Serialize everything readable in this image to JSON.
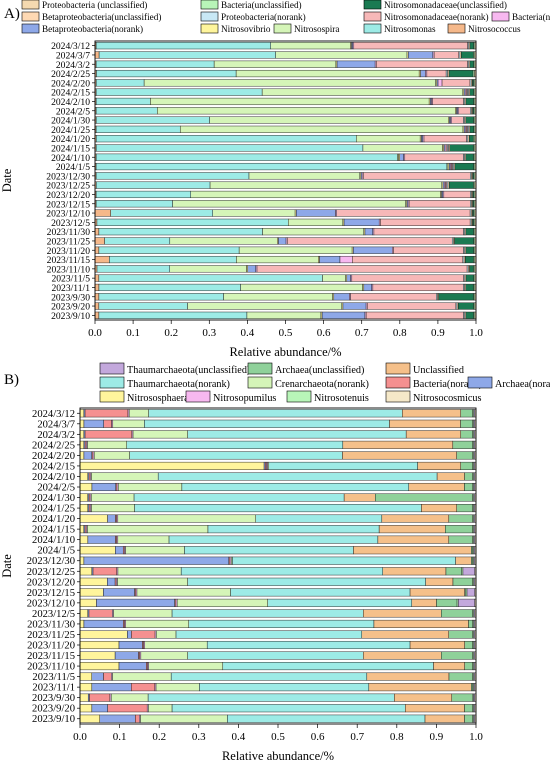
{
  "chart_data": [
    {
      "panel_label": "A)",
      "type": "bar",
      "orientation": "horizontal",
      "stacked": true,
      "xlabel": "Relative abundance/%",
      "ylabel": "Date",
      "xlim": [
        0,
        1
      ],
      "xticks": [
        "0.0",
        "0.1",
        "0.2",
        "0.3",
        "0.4",
        "0.5",
        "0.6",
        "0.7",
        "0.8",
        "0.9",
        "1.0"
      ],
      "legend_position": "top",
      "categories": [
        "2024/3/12",
        "2024/3/7",
        "2024/3/2",
        "2024/2/25",
        "2024/2/20",
        "2024/2/15",
        "2024/2/10",
        "2024/2/5",
        "2024/1/30",
        "2024/1/25",
        "2024/1/20",
        "2024/1/15",
        "2024/1/10",
        "2024/1/5",
        "2023/12/30",
        "2023/12/25",
        "2023/12/20",
        "2023/12/15",
        "2023/12/10",
        "2023/12/5",
        "2023/11/30",
        "2023/11/25",
        "2023/11/20",
        "2023/11/15",
        "2023/11/10",
        "2023/11/5",
        "2023/11/1",
        "2023/9/30",
        "2023/9/20",
        "2023/9/10"
      ],
      "series": [
        {
          "name": "Nitrosococcus",
          "color": "#F5B88A",
          "values": [
            0.003,
            0.01,
            0.003,
            0.003,
            0.003,
            0.003,
            0.003,
            0.003,
            0.003,
            0.003,
            0.003,
            0.003,
            0.003,
            0.003,
            0.003,
            0.003,
            0.003,
            0.003,
            0.04,
            0.005,
            0.01,
            0.025,
            0.01,
            0.035,
            0.005,
            0.01,
            0.01,
            0.01,
            0.01,
            0.01
          ]
        },
        {
          "name": "Nitrosomonas",
          "color": "#9DEBE6",
          "values": [
            0.46,
            0.43,
            0.31,
            0.29,
            0.12,
            0.43,
            0.14,
            0.16,
            0.29,
            0.22,
            0.61,
            0.67,
            0.77,
            0.93,
            0.4,
            0.28,
            0.25,
            0.2,
            0.26,
            0.49,
            0.42,
            0.17,
            0.36,
            0.31,
            0.18,
            0.58,
            0.36,
            0.32,
            0.23,
            0.38
          ]
        },
        {
          "name": "Nitrosospira",
          "color": "#D5F5B8",
          "values": [
            0.21,
            0.32,
            0.32,
            0.38,
            0.73,
            0.52,
            0.72,
            0.78,
            0.61,
            0.74,
            0.15,
            0.2,
            0.003,
            0.003,
            0.29,
            0.57,
            0.66,
            0.61,
            0.21,
            0.14,
            0.26,
            0.28,
            0.29,
            0.2,
            0.19,
            0.06,
            0.31,
            0.28,
            0.4,
            0.19
          ]
        },
        {
          "name": "Nitrosovibrio",
          "color": "#FFF59C",
          "values": [
            0.003,
            0.003,
            0.003,
            0.003,
            0.003,
            0.003,
            0.003,
            0.003,
            0.003,
            0.003,
            0.003,
            0.003,
            0.003,
            0.003,
            0.003,
            0.003,
            0.003,
            0.003,
            0.003,
            0.003,
            0.003,
            0.003,
            0.003,
            0.003,
            0.003,
            0.003,
            0.003,
            0.003,
            0.003,
            0.003
          ]
        },
        {
          "name": "Betaproteobacteria(norank)",
          "color": "#8EA8E8",
          "values": [
            0.003,
            0.06,
            0.1,
            0.01,
            0.003,
            0.003,
            0.003,
            0.003,
            0.003,
            0.003,
            0.003,
            0.003,
            0.01,
            0.003,
            0.003,
            0.003,
            0.003,
            0.003,
            0.1,
            0.09,
            0.02,
            0.02,
            0.1,
            0.05,
            0.02,
            0.01,
            0.02,
            0.04,
            0.06,
            0.11
          ]
        },
        {
          "name": "Bacteria(norank)",
          "color": "#F7B8F0",
          "values": [
            0.003,
            0.003,
            0.003,
            0.003,
            0.01,
            0.003,
            0.003,
            0.003,
            0.003,
            0.003,
            0.003,
            0.003,
            0.003,
            0.003,
            0.003,
            0.003,
            0.003,
            0.003,
            0.003,
            0.003,
            0.003,
            0.003,
            0.003,
            0.03,
            0.003,
            0.003,
            0.003,
            0.003,
            0.003,
            0.003
          ]
        },
        {
          "name": "Nitrosomonadaceae(norank)",
          "color": "#F7B8B8",
          "values": [
            0.3,
            0.06,
            0.24,
            0.04,
            0.07,
            0.003,
            0.08,
            0.03,
            0.03,
            0.003,
            0.1,
            0.003,
            0.15,
            0.003,
            0.28,
            0.003,
            0.07,
            0.16,
            0.34,
            0.23,
            0.23,
            0.43,
            0.18,
            0.27,
            0.52,
            0.29,
            0.23,
            0.22,
            0.23,
            0.25
          ]
        },
        {
          "name": "Proteobacteria(norank)",
          "color": "#C8E8F5",
          "values": [
            0.003,
            0.003,
            0.003,
            0.003,
            0.003,
            0.003,
            0.003,
            0.003,
            0.003,
            0.003,
            0.003,
            0.003,
            0.003,
            0.003,
            0.003,
            0.003,
            0.003,
            0.003,
            0.003,
            0.003,
            0.003,
            0.003,
            0.003,
            0.003,
            0.003,
            0.003,
            0.003,
            0.003,
            0.003,
            0.003
          ]
        },
        {
          "name": "Betaproteobacteria(unclassified)",
          "color": "#FFD9B3",
          "values": [
            0.003,
            0.003,
            0.003,
            0.003,
            0.003,
            0.003,
            0.003,
            0.003,
            0.003,
            0.003,
            0.003,
            0.003,
            0.003,
            0.003,
            0.003,
            0.003,
            0.003,
            0.003,
            0.003,
            0.003,
            0.003,
            0.003,
            0.003,
            0.003,
            0.003,
            0.003,
            0.003,
            0.003,
            0.003,
            0.003
          ]
        },
        {
          "name": "Nitrosomonadaceae(unclassified)",
          "color": "#1A7A52",
          "values": [
            0.01,
            0.03,
            0.01,
            0.05,
            0.003,
            0.01,
            0.02,
            0.003,
            0.02,
            0.01,
            0.01,
            0.06,
            0.02,
            0.05,
            0.003,
            0.06,
            0.003,
            0.003,
            0.003,
            0.003,
            0.02,
            0.05,
            0.02,
            0.02,
            0.01,
            0.02,
            0.02,
            0.09,
            0.04,
            0.02
          ]
        },
        {
          "name": "Bacteria(unclassified)",
          "color": "#B8F5B8",
          "values": [
            0.003,
            0.003,
            0.003,
            0.003,
            0.003,
            0.003,
            0.003,
            0.003,
            0.003,
            0.003,
            0.003,
            0.003,
            0.003,
            0.003,
            0.003,
            0.003,
            0.003,
            0.003,
            0.003,
            0.003,
            0.003,
            0.003,
            0.003,
            0.003,
            0.003,
            0.003,
            0.003,
            0.003,
            0.003,
            0.003
          ]
        },
        {
          "name": "Proteobacteria (unclassified)",
          "color": "#F5D9B0",
          "values": [
            0.003,
            0.003,
            0.003,
            0.003,
            0.003,
            0.003,
            0.003,
            0.003,
            0.003,
            0.003,
            0.003,
            0.003,
            0.003,
            0.003,
            0.003,
            0.003,
            0.003,
            0.003,
            0.003,
            0.003,
            0.003,
            0.003,
            0.003,
            0.003,
            0.003,
            0.003,
            0.003,
            0.003,
            0.003,
            0.003
          ]
        }
      ]
    },
    {
      "panel_label": "B)",
      "type": "bar",
      "orientation": "horizontal",
      "stacked": true,
      "xlabel": "Relative abundance/%",
      "ylabel": "Date",
      "xlim": [
        0,
        1
      ],
      "xticks": [
        "0.0",
        "0.1",
        "0.2",
        "0.3",
        "0.4",
        "0.5",
        "0.6",
        "0.7",
        "0.8",
        "0.9",
        "1.0"
      ],
      "legend_position": "top",
      "categories": [
        "2024/3/12",
        "2024/3/7",
        "2024/3/2",
        "2024/2/25",
        "2024/2/20",
        "2024/2/15",
        "2024/2/10",
        "2024/2/5",
        "2024/1/30",
        "2024/1/25",
        "2024/1/20",
        "2024/1/15",
        "2024/1/10",
        "2024/1/5",
        "2023/12/30",
        "2023/12/25",
        "2023/12/20",
        "2023/12/15",
        "2023/12/10",
        "2023/12/5",
        "2023/11/30",
        "2023/11/25",
        "2023/11/20",
        "2023/11/15",
        "2023/11/10",
        "2023/11/5",
        "2023/11/1",
        "2023/9/30",
        "2023/9/20",
        "2023/9/10"
      ],
      "series": [
        {
          "name": "Nitrososphaera",
          "color": "#FFF59C",
          "values": [
            0.01,
            0.01,
            0.01,
            0.01,
            0.01,
            0.47,
            0.02,
            0.03,
            0.02,
            0.02,
            0.07,
            0.01,
            0.02,
            0.09,
            0.01,
            0.03,
            0.07,
            0.06,
            0.04,
            0.02,
            0.01,
            0.12,
            0.1,
            0.09,
            0.1,
            0.03,
            0.03,
            0.02,
            0.03,
            0.05
          ]
        },
        {
          "name": "Archaea(norank)",
          "color": "#8EA8E8",
          "values": [
            0.003,
            0.05,
            0.003,
            0.003,
            0.02,
            0.003,
            0.003,
            0.06,
            0.003,
            0.003,
            0.02,
            0.003,
            0.07,
            0.02,
            0.37,
            0.003,
            0.02,
            0.08,
            0.19,
            0.003,
            0.1,
            0.01,
            0.06,
            0.06,
            0.07,
            0.03,
            0.1,
            0.003,
            0.04,
            0.09
          ]
        },
        {
          "name": "Bacteria(norank)",
          "color": "#F59090",
          "values": [
            0.11,
            0.02,
            0.12,
            0.003,
            0.003,
            0.003,
            0.003,
            0.003,
            0.003,
            0.003,
            0.003,
            0.003,
            0.003,
            0.003,
            0.003,
            0.06,
            0.003,
            0.003,
            0.003,
            0.06,
            0.003,
            0.06,
            0.003,
            0.003,
            0.003,
            0.02,
            0.06,
            0.05,
            0.1,
            0.01
          ]
        },
        {
          "name": "Nitrosopumilus",
          "color": "#F7B8F0",
          "values": [
            0.003,
            0.003,
            0.003,
            0.003,
            0.003,
            0.003,
            0.003,
            0.003,
            0.003,
            0.003,
            0.003,
            0.003,
            0.003,
            0.003,
            0.003,
            0.003,
            0.003,
            0.003,
            0.003,
            0.003,
            0.003,
            0.003,
            0.003,
            0.003,
            0.003,
            0.003,
            0.003,
            0.003,
            0.003,
            0.003
          ]
        },
        {
          "name": "Crenarchaeota(norank)",
          "color": "#D5F5B8",
          "values": [
            0.05,
            0.08,
            0.14,
            0.1,
            0.09,
            0.003,
            0.17,
            0.16,
            0.11,
            0.11,
            0.35,
            0.31,
            0.13,
            0.15,
            0.003,
            0.16,
            0.18,
            0.24,
            0.22,
            0.15,
            0.16,
            0.05,
            0.16,
            0.12,
            0.19,
            0.15,
            0.11,
            0.09,
            0.06,
            0.22
          ]
        },
        {
          "name": "Thaumarchaeota(norank)",
          "color": "#9DEBE6",
          "values": [
            0.65,
            0.62,
            0.56,
            0.55,
            0.54,
            0.38,
            0.71,
            0.57,
            0.54,
            0.73,
            0.32,
            0.44,
            0.53,
            0.43,
            0.57,
            0.51,
            0.61,
            0.46,
            0.35,
            0.49,
            0.47,
            0.47,
            0.52,
            0.45,
            0.54,
            0.5,
            0.43,
            0.6,
            0.59,
            0.5
          ]
        },
        {
          "name": "Unclassified",
          "color": "#F5C08A",
          "values": [
            0.15,
            0.18,
            0.14,
            0.28,
            0.29,
            0.11,
            0.07,
            0.14,
            0.08,
            0.09,
            0.17,
            0.17,
            0.18,
            0.3,
            0.04,
            0.16,
            0.07,
            0.14,
            0.06,
            0.2,
            0.24,
            0.22,
            0.14,
            0.2,
            0.08,
            0.21,
            0.26,
            0.14,
            0.15,
            0.1
          ]
        },
        {
          "name": "Archaea(unclassified)",
          "color": "#8FD19A",
          "values": [
            0.03,
            0.03,
            0.03,
            0.05,
            0.04,
            0.03,
            0.02,
            0.02,
            0.25,
            0.04,
            0.06,
            0.07,
            0.06,
            0.003,
            0.003,
            0.04,
            0.05,
            0.003,
            0.05,
            0.08,
            0.01,
            0.06,
            0.02,
            0.08,
            0.02,
            0.06,
            0.003,
            0.05,
            0.02,
            0.02
          ]
        },
        {
          "name": "Nitrosotenuis",
          "color": "#B8F5B8",
          "values": [
            0.003,
            0.003,
            0.003,
            0.003,
            0.003,
            0.003,
            0.003,
            0.003,
            0.003,
            0.003,
            0.003,
            0.003,
            0.003,
            0.003,
            0.003,
            0.003,
            0.003,
            0.003,
            0.003,
            0.003,
            0.003,
            0.003,
            0.003,
            0.003,
            0.003,
            0.003,
            0.003,
            0.003,
            0.003,
            0.003
          ]
        },
        {
          "name": "Thaumarchaeota(unclassified)",
          "color": "#C3A8DC",
          "values": [
            0.003,
            0.003,
            0.003,
            0.003,
            0.003,
            0.003,
            0.003,
            0.003,
            0.003,
            0.003,
            0.003,
            0.003,
            0.003,
            0.003,
            0.003,
            0.03,
            0.003,
            0.02,
            0.04,
            0.003,
            0.003,
            0.003,
            0.003,
            0.003,
            0.003,
            0.003,
            0.003,
            0.003,
            0.003,
            0.003
          ]
        },
        {
          "name": "Nitrosocosmicus",
          "color": "#F5E8C8",
          "values": [
            0.003,
            0.003,
            0.003,
            0.003,
            0.003,
            0.003,
            0.003,
            0.003,
            0.003,
            0.003,
            0.003,
            0.003,
            0.003,
            0.003,
            0.003,
            0.003,
            0.003,
            0.003,
            0.003,
            0.003,
            0.003,
            0.003,
            0.003,
            0.003,
            0.003,
            0.003,
            0.003,
            0.003,
            0.003,
            0.003
          ]
        }
      ]
    }
  ]
}
